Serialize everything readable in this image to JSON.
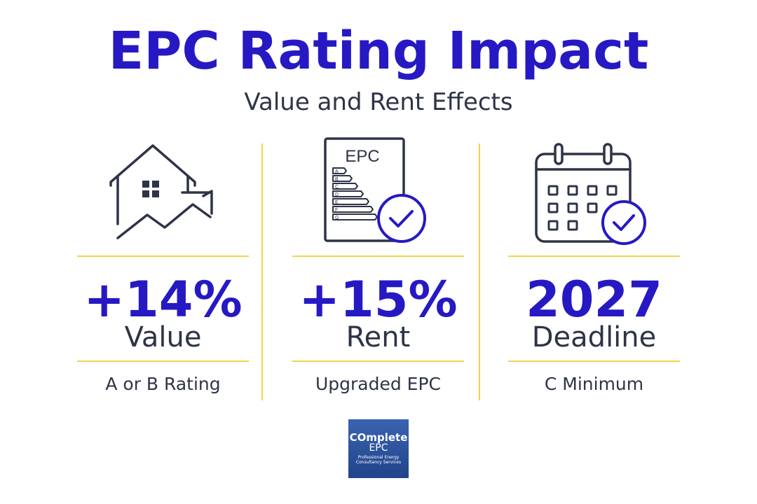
{
  "header": {
    "title": "EPC Rating Impact",
    "subtitle": "Value and Rent Effects"
  },
  "colors": {
    "accent": "#2619c4",
    "text": "#2e3447",
    "divider": "#f3d24a"
  },
  "stats": [
    {
      "value": "+14%",
      "label": "Value",
      "caption": "A or B Rating",
      "icon": "house-growth-icon"
    },
    {
      "value": "+15%",
      "label": "Rent",
      "caption": "Upgraded EPC",
      "icon": "epc-certificate-icon"
    },
    {
      "value": "2027",
      "label": "Deadline",
      "caption": "C Minimum",
      "icon": "calendar-check-icon"
    }
  ],
  "certificate": {
    "heading": "EPC",
    "bands": [
      "A",
      "B",
      "C",
      "D",
      "E",
      "F",
      "G"
    ]
  },
  "logo": {
    "line1": "COmplete",
    "line2": "EPC",
    "line3": "Professional Energy Consultancy Services"
  }
}
